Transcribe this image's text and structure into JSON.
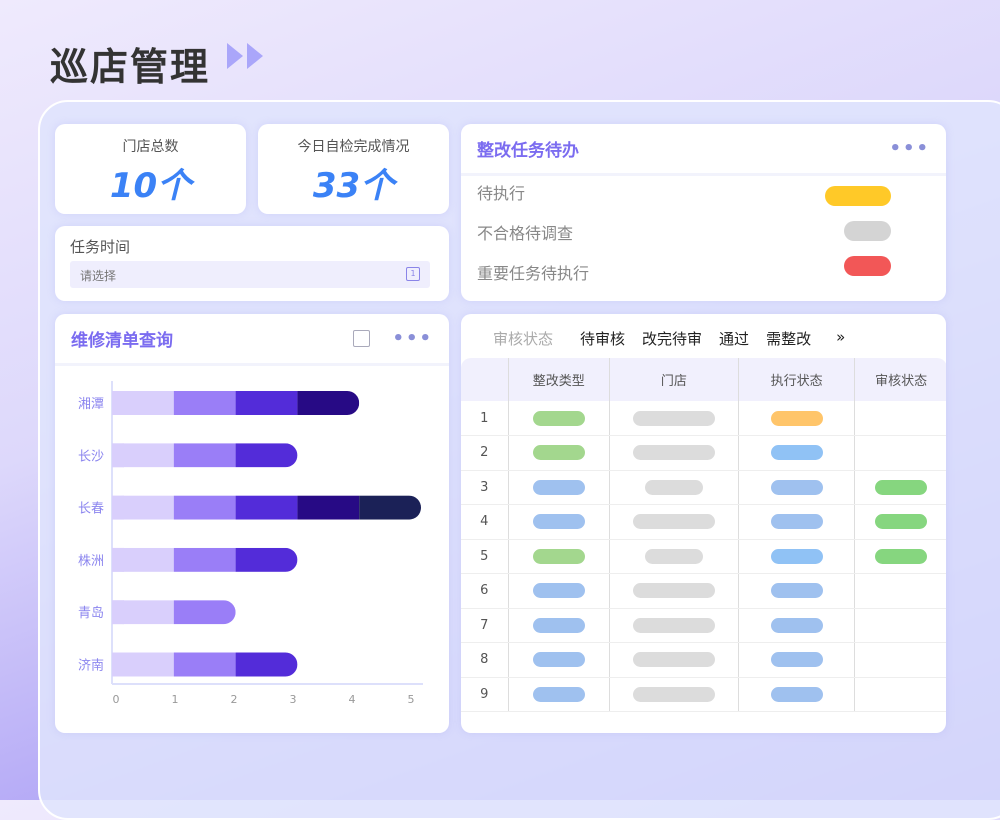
{
  "header": {
    "title": "巡店管理",
    "arrows_icon": "double-chevron-right-icon"
  },
  "stats": [
    {
      "label": "门店总数",
      "value": "10个"
    },
    {
      "label": "今日自检完成情况",
      "value": "33个"
    }
  ],
  "task_time": {
    "label": "任务时间",
    "placeholder": "请选择",
    "icon": "calendar-icon"
  },
  "todo": {
    "title": "整改任务待办",
    "more": "•••",
    "items": [
      {
        "label": "待执行",
        "color": "#ffc928"
      },
      {
        "label": "不合格待调查",
        "color": "#d4d4d4"
      },
      {
        "label": "重要任务待执行",
        "color": "#f25757"
      }
    ]
  },
  "repair": {
    "title": "维修清单查询",
    "more": "•••"
  },
  "chart_data": {
    "type": "bar",
    "orientation": "horizontal",
    "stacked": true,
    "categories": [
      "湘潭",
      "长沙",
      "长春",
      "株洲",
      "青岛",
      "济南"
    ],
    "series": [
      {
        "values": [
          1,
          1,
          1,
          1,
          1,
          1
        ],
        "color": "#d9cffc"
      },
      {
        "values": [
          1,
          1,
          1,
          1,
          1,
          1
        ],
        "color": "#9a7ef7"
      },
      {
        "values": [
          1,
          1,
          1,
          1,
          0,
          1
        ],
        "color": "#532cd9"
      },
      {
        "values": [
          1,
          0,
          1,
          0,
          0,
          0
        ],
        "color": "#270a85"
      },
      {
        "values": [
          0,
          0,
          1,
          0,
          0,
          0
        ],
        "color": "#1b2157"
      }
    ],
    "xlim": [
      0,
      5
    ],
    "xticks": [
      "0",
      "1",
      "2",
      "3",
      "4",
      "5"
    ]
  },
  "review": {
    "filter_label": "审核状态",
    "tabs": [
      "待审核",
      "改完待审",
      "通过",
      "需整改"
    ],
    "more_tabs": "»",
    "columns": [
      "",
      "整改类型",
      "门店",
      "执行状态",
      "审核状态"
    ],
    "rows": [
      {
        "n": "1",
        "type": "#a3d78e",
        "store": "wide",
        "exec": "#ffc56a",
        "audit": ""
      },
      {
        "n": "2",
        "type": "#a3d78e",
        "store": "wide",
        "exec": "#90c2f5",
        "audit": ""
      },
      {
        "n": "3",
        "type": "#9fc1ef",
        "store": "short",
        "exec": "#9fc1ef",
        "audit": "#86d67f"
      },
      {
        "n": "4",
        "type": "#9fc1ef",
        "store": "wide",
        "exec": "#9fc1ef",
        "audit": "#86d67f"
      },
      {
        "n": "5",
        "type": "#a3d78e",
        "store": "short",
        "exec": "#90c2f5",
        "audit": "#86d67f"
      },
      {
        "n": "6",
        "type": "#9fc1ef",
        "store": "wide",
        "exec": "#9fc1ef",
        "audit": ""
      },
      {
        "n": "7",
        "type": "#9fc1ef",
        "store": "wide",
        "exec": "#9fc1ef",
        "audit": ""
      },
      {
        "n": "8",
        "type": "#9fc1ef",
        "store": "wide",
        "exec": "#9fc1ef",
        "audit": ""
      },
      {
        "n": "9",
        "type": "#9fc1ef",
        "store": "wide",
        "exec": "#9fc1ef",
        "audit": ""
      }
    ]
  }
}
